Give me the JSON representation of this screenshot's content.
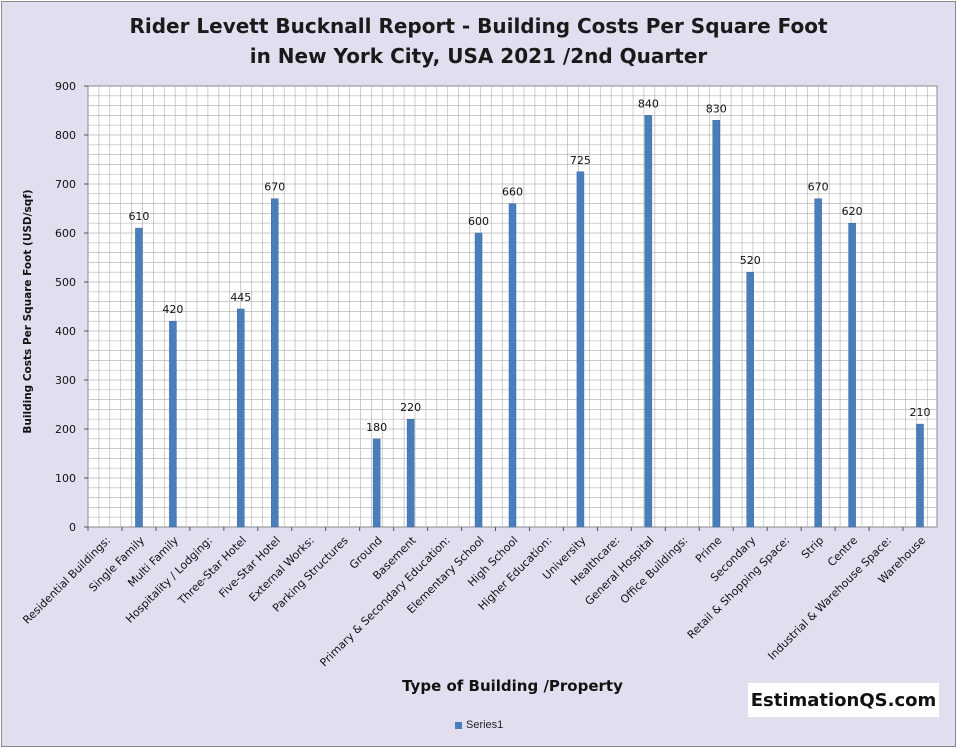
{
  "chart_data": {
    "type": "bar",
    "title": "Rider Levett Bucknall Report - Building Costs Per Square Foot",
    "subtitle": "in New York City, USA 2021 /2nd Quarter",
    "xlabel": "Type of Building /Property",
    "ylabel": "Building Costs Per Square Foot (USD/sqf)",
    "ylim": [
      0,
      900
    ],
    "yticks": [
      0,
      100,
      200,
      300,
      400,
      500,
      600,
      700,
      800,
      900
    ],
    "grid": true,
    "legend_position": "bottom",
    "bar_color": "#4a7ebb",
    "categories": [
      "Residential Buildings:",
      "Single Family",
      "Multi Family",
      "Hospitality / Lodging:",
      "Three-Star Hotel",
      "Five-Star Hotel",
      "External Works:",
      "Parking Structures",
      "Ground",
      "Basement",
      "Primary & Secondary Education:",
      "Elementary School",
      "High School",
      "Higher Education:",
      "University",
      "Healthcare:",
      "General Hospital",
      "Office Buildings:",
      "Prime",
      "Secondary",
      "Retail & Shopping Space:",
      "Strip",
      "Centre",
      "Industrial & Warehouse Space:",
      "Warehouse"
    ],
    "series": [
      {
        "name": "Series1",
        "values": [
          null,
          610,
          420,
          null,
          445,
          670,
          null,
          null,
          180,
          220,
          null,
          600,
          660,
          null,
          725,
          null,
          840,
          null,
          830,
          520,
          null,
          670,
          620,
          null,
          210
        ]
      }
    ]
  },
  "watermark": "EstimationQS.com"
}
